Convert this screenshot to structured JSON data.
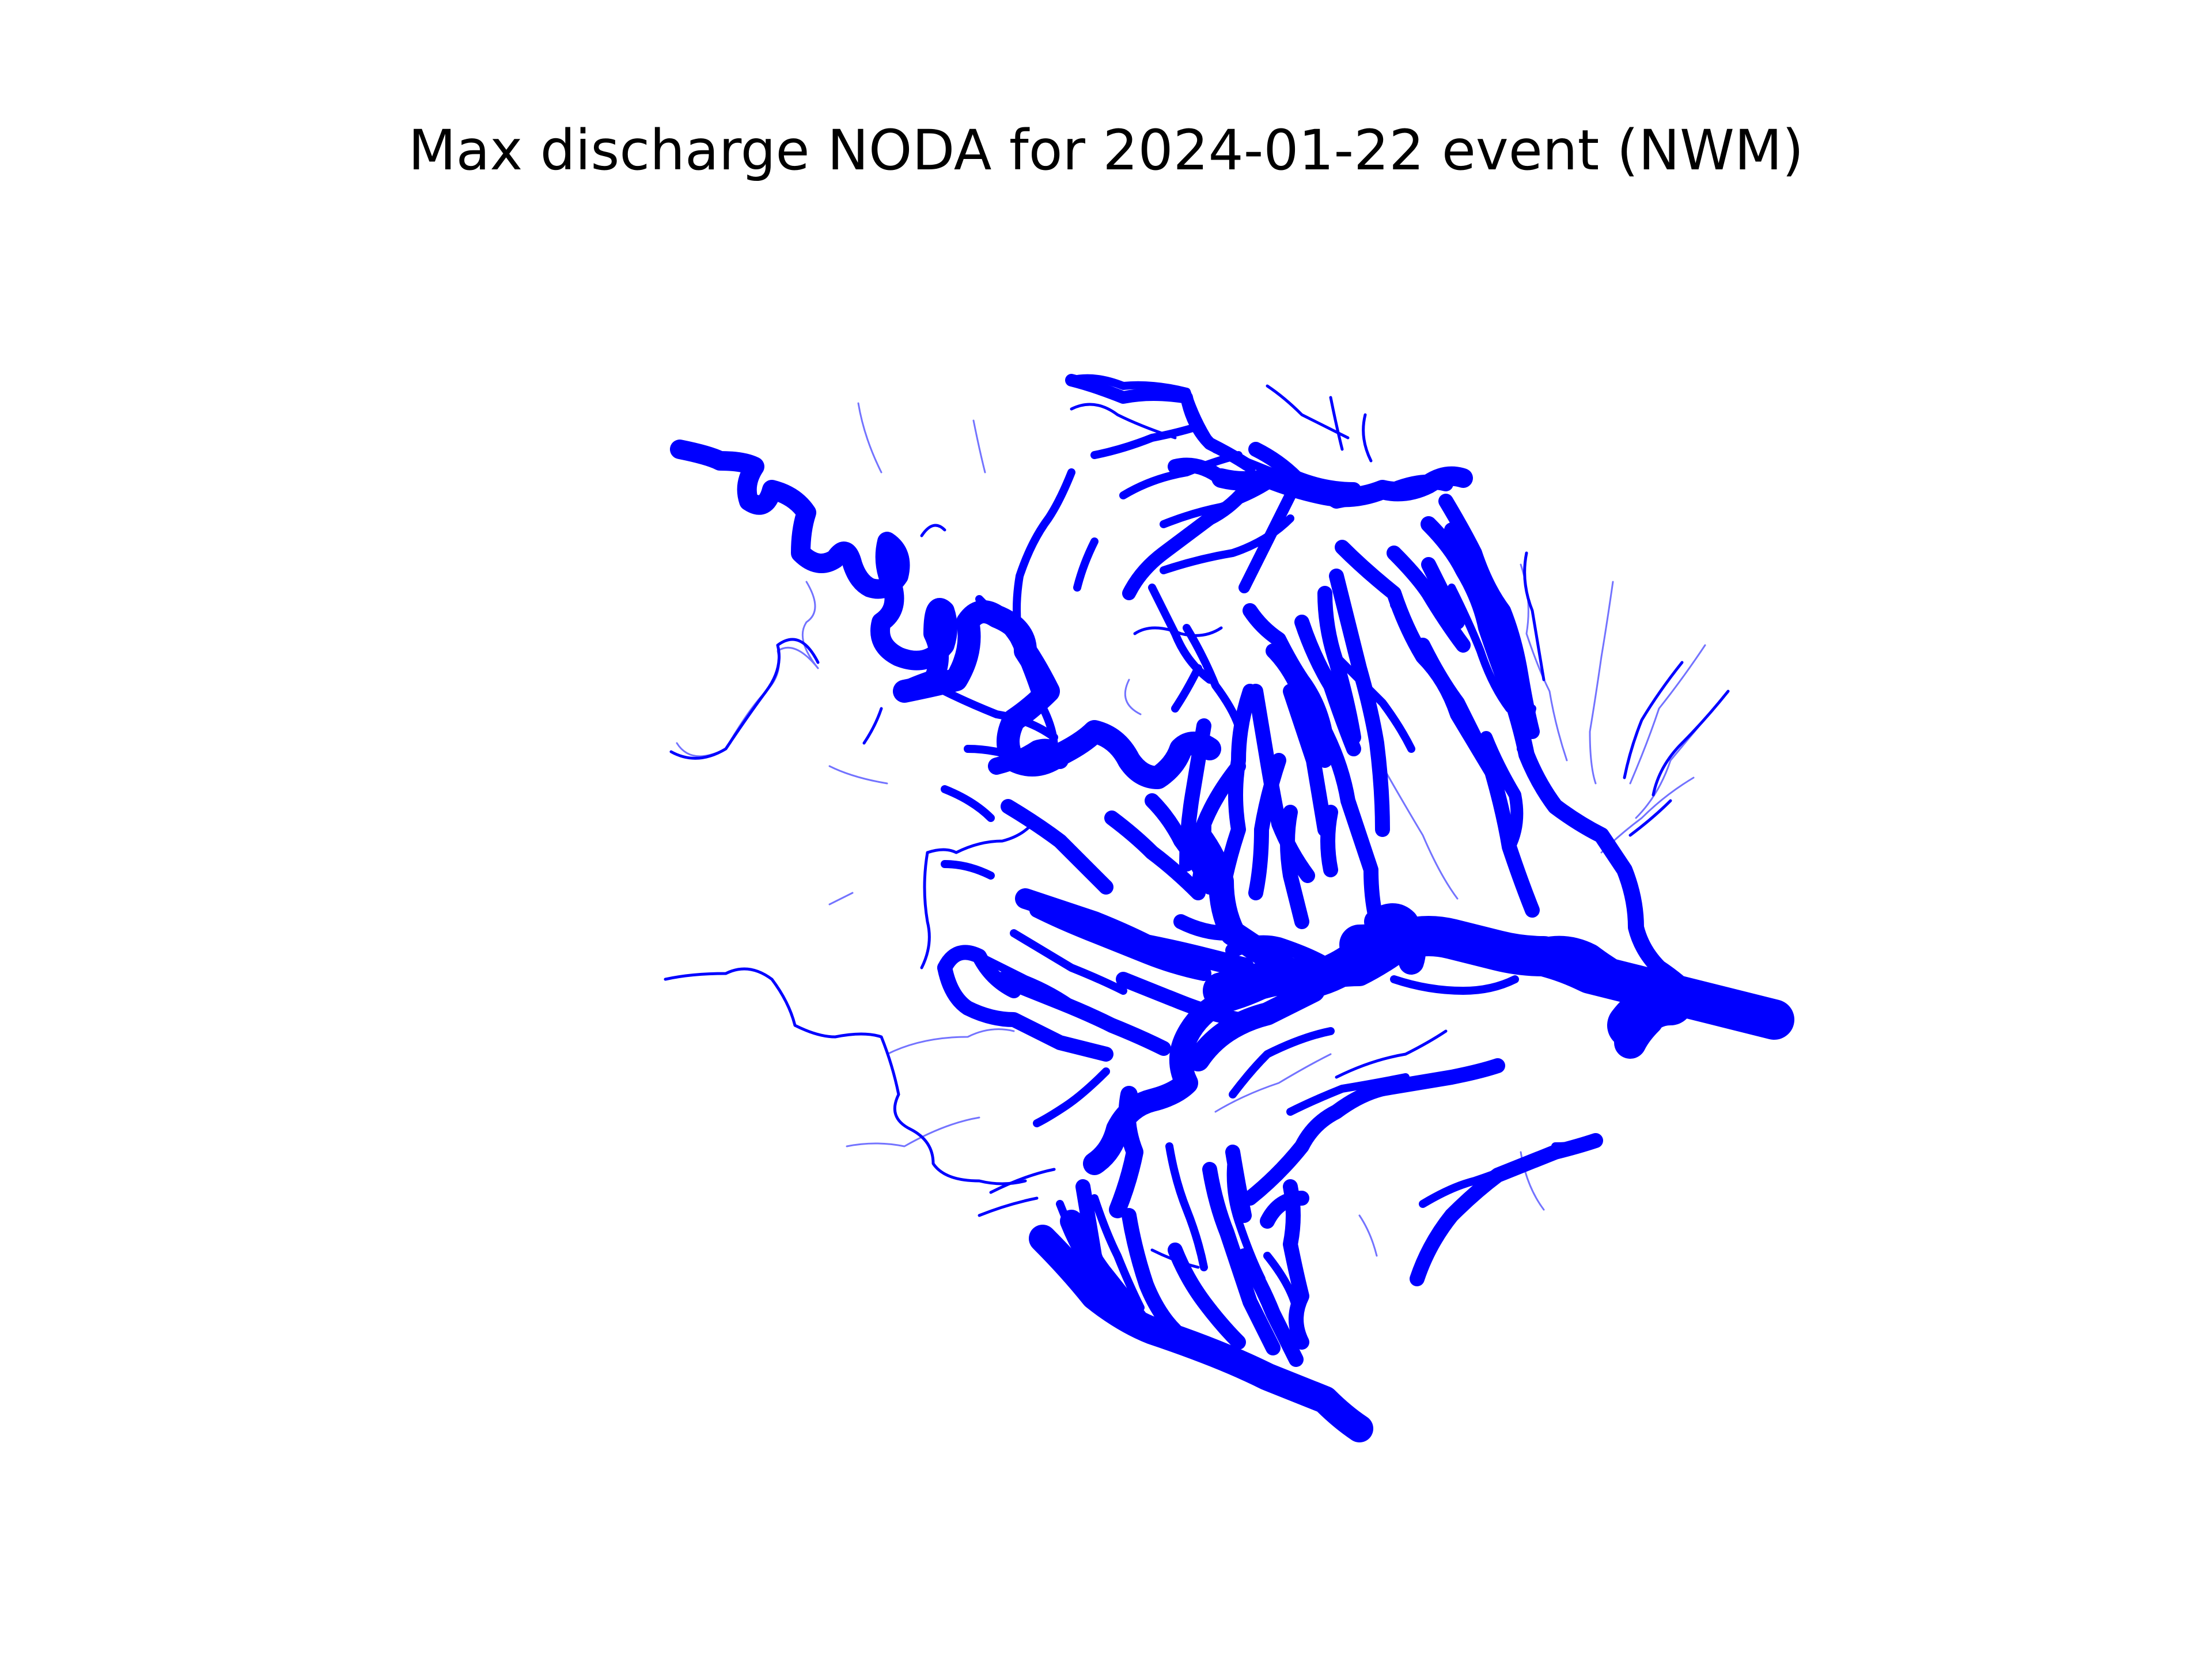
{
  "title": "Max discharge NODA for 2024-01-22 event (NWM)",
  "colors": {
    "background": "#ffffff",
    "river": "#0000ff",
    "text": "#000000"
  },
  "map": {
    "symbology": "river segments drawn with line width and opacity scaled by maximum discharge",
    "axes_visible": false
  }
}
